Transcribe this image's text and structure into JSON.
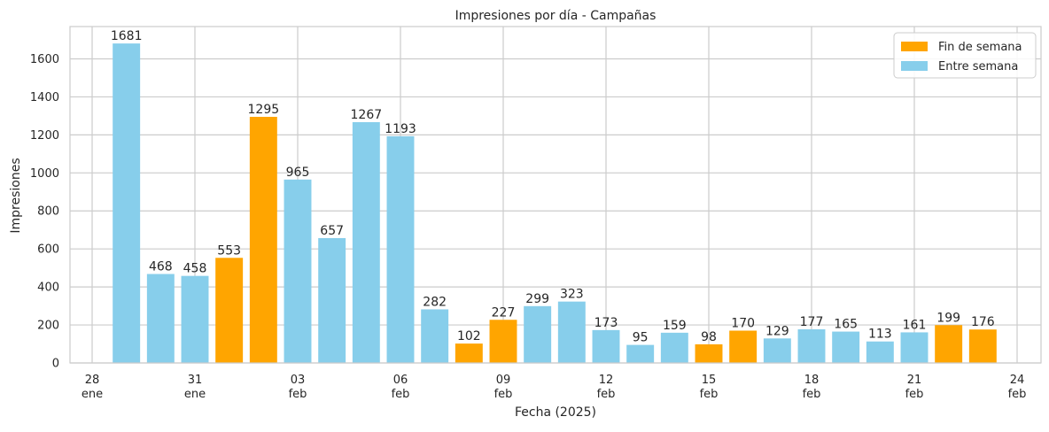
{
  "chart_data": {
    "type": "bar",
    "title": "Impresiones por día - Campañas",
    "xlabel": "Fecha (2025)",
    "ylabel": "Impresiones",
    "ylim": [
      0,
      1770
    ],
    "yticks": [
      0,
      200,
      400,
      600,
      800,
      1000,
      1200,
      1400,
      1600
    ],
    "grid": true,
    "legend_position": "top-right",
    "colors": {
      "weekend": "#FFA500",
      "weekday": "#87CEEB"
    },
    "legend": [
      {
        "key": "weekend",
        "label": "Fin de semana"
      },
      {
        "key": "weekday",
        "label": "Entre semana"
      }
    ],
    "x_day_range": [
      "2025-01-28",
      "2025-02-24"
    ],
    "xticks": [
      {
        "date": "2025-01-28",
        "day": "28",
        "month": "ene"
      },
      {
        "date": "2025-01-31",
        "day": "31",
        "month": "ene"
      },
      {
        "date": "2025-02-03",
        "day": "03",
        "month": "feb"
      },
      {
        "date": "2025-02-06",
        "day": "06",
        "month": "feb"
      },
      {
        "date": "2025-02-09",
        "day": "09",
        "month": "feb"
      },
      {
        "date": "2025-02-12",
        "day": "12",
        "month": "feb"
      },
      {
        "date": "2025-02-15",
        "day": "15",
        "month": "feb"
      },
      {
        "date": "2025-02-18",
        "day": "18",
        "month": "feb"
      },
      {
        "date": "2025-02-21",
        "day": "21",
        "month": "feb"
      },
      {
        "date": "2025-02-24",
        "day": "24",
        "month": "feb"
      }
    ],
    "bars": [
      {
        "date": "2025-01-29",
        "value": 1681,
        "group": "weekday"
      },
      {
        "date": "2025-01-30",
        "value": 468,
        "group": "weekday"
      },
      {
        "date": "2025-01-31",
        "value": 458,
        "group": "weekday"
      },
      {
        "date": "2025-02-01",
        "value": 553,
        "group": "weekend"
      },
      {
        "date": "2025-02-02",
        "value": 1295,
        "group": "weekend"
      },
      {
        "date": "2025-02-03",
        "value": 965,
        "group": "weekday"
      },
      {
        "date": "2025-02-04",
        "value": 657,
        "group": "weekday"
      },
      {
        "date": "2025-02-05",
        "value": 1267,
        "group": "weekday"
      },
      {
        "date": "2025-02-06",
        "value": 1193,
        "group": "weekday"
      },
      {
        "date": "2025-02-07",
        "value": 282,
        "group": "weekday"
      },
      {
        "date": "2025-02-08",
        "value": 102,
        "group": "weekend"
      },
      {
        "date": "2025-02-09",
        "value": 227,
        "group": "weekend"
      },
      {
        "date": "2025-02-10",
        "value": 299,
        "group": "weekday"
      },
      {
        "date": "2025-02-11",
        "value": 323,
        "group": "weekday"
      },
      {
        "date": "2025-02-12",
        "value": 173,
        "group": "weekday"
      },
      {
        "date": "2025-02-13",
        "value": 95,
        "group": "weekday"
      },
      {
        "date": "2025-02-14",
        "value": 159,
        "group": "weekday"
      },
      {
        "date": "2025-02-15",
        "value": 98,
        "group": "weekend"
      },
      {
        "date": "2025-02-16",
        "value": 170,
        "group": "weekend"
      },
      {
        "date": "2025-02-17",
        "value": 129,
        "group": "weekday"
      },
      {
        "date": "2025-02-18",
        "value": 177,
        "group": "weekday"
      },
      {
        "date": "2025-02-19",
        "value": 165,
        "group": "weekday"
      },
      {
        "date": "2025-02-20",
        "value": 113,
        "group": "weekday"
      },
      {
        "date": "2025-02-21",
        "value": 161,
        "group": "weekday"
      },
      {
        "date": "2025-02-22",
        "value": 199,
        "group": "weekend"
      },
      {
        "date": "2025-02-23",
        "value": 176,
        "group": "weekend"
      }
    ]
  }
}
